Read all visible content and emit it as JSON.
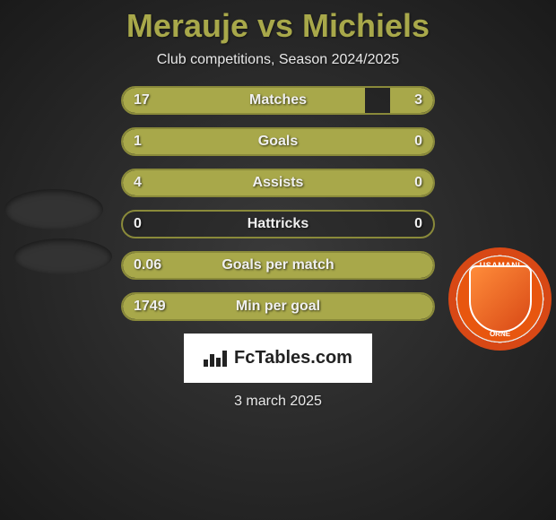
{
  "title": "Merauje vs Michiels",
  "subtitle": "Club competitions, Season 2024/2025",
  "date": "3 march 2025",
  "fctables_label": "FcTables.com",
  "club_name_top": "USAMANI",
  "club_name_bottom": "ORNE",
  "colors": {
    "accent": "#a8a84a",
    "border": "#8a8a3a",
    "badge_orange": "#e8560f",
    "text": "#f0f0f0"
  },
  "stats": [
    {
      "label": "Matches",
      "left_value": "17",
      "right_value": "3",
      "left_fill_pct": 78,
      "right_fill_pct": 14
    },
    {
      "label": "Goals",
      "left_value": "1",
      "right_value": "0",
      "left_fill_pct": 100,
      "right_fill_pct": 0
    },
    {
      "label": "Assists",
      "left_value": "4",
      "right_value": "0",
      "left_fill_pct": 100,
      "right_fill_pct": 0
    },
    {
      "label": "Hattricks",
      "left_value": "0",
      "right_value": "0",
      "left_fill_pct": 0,
      "right_fill_pct": 0
    },
    {
      "label": "Goals per match",
      "left_value": "0.06",
      "right_value": "",
      "left_fill_pct": 100,
      "right_fill_pct": 0
    },
    {
      "label": "Min per goal",
      "left_value": "1749",
      "right_value": "",
      "left_fill_pct": 100,
      "right_fill_pct": 0
    }
  ]
}
